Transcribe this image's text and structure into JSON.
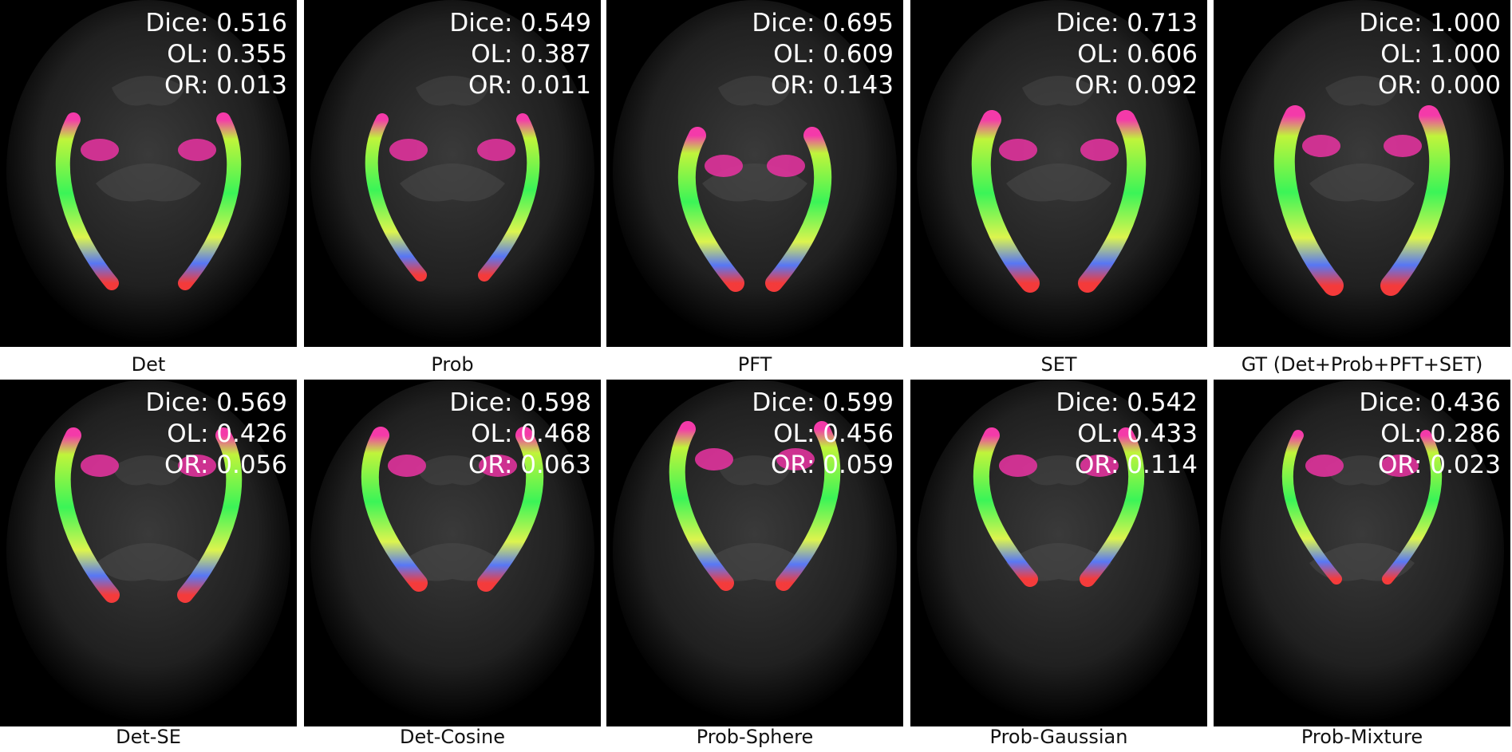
{
  "figure": {
    "panels": [
      {
        "caption": "Det",
        "dice": "Dice: 0.516",
        "ol": "OL: 0.355",
        "or": "OR: 0.013"
      },
      {
        "caption": "Prob",
        "dice": "Dice: 0.549",
        "ol": "OL: 0.387",
        "or": "OR: 0.011"
      },
      {
        "caption": "PFT",
        "dice": "Dice: 0.695",
        "ol": "OL: 0.609",
        "or": "OR: 0.143"
      },
      {
        "caption": "SET",
        "dice": "Dice: 0.713",
        "ol": "OL: 0.606",
        "or": "OR: 0.092"
      },
      {
        "caption": "GT (Det+Prob+PFT+SET)",
        "dice": "Dice: 1.000",
        "ol": "OL: 1.000",
        "or": "OR: 0.000"
      },
      {
        "caption": "Det-SE",
        "dice": "Dice: 0.569",
        "ol": "OL: 0.426",
        "or": "OR: 0.056"
      },
      {
        "caption": "Det-Cosine",
        "dice": "Dice: 0.598",
        "ol": "OL: 0.468",
        "or": "OR: 0.063"
      },
      {
        "caption": "Prob-Sphere",
        "dice": "Dice: 0.599",
        "ol": "OL: 0.456",
        "or": "OR: 0.059"
      },
      {
        "caption": "Prob-Gaussian",
        "dice": "Dice: 0.542",
        "ol": "OL: 0.433",
        "or": "OR: 0.114"
      },
      {
        "caption": "Prob-Mixture",
        "dice": "Dice: 0.436",
        "ol": "OL: 0.286",
        "or": "OR: 0.023"
      }
    ]
  }
}
